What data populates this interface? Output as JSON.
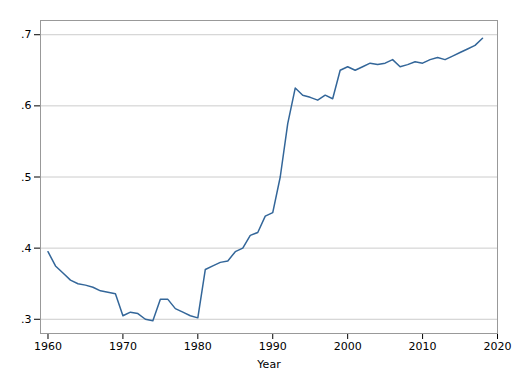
{
  "chart_data": {
    "type": "line",
    "x": [
      1960,
      1961,
      1962,
      1963,
      1964,
      1965,
      1966,
      1967,
      1968,
      1969,
      1970,
      1971,
      1972,
      1973,
      1974,
      1975,
      1976,
      1977,
      1978,
      1979,
      1980,
      1981,
      1982,
      1983,
      1984,
      1985,
      1986,
      1987,
      1988,
      1989,
      1990,
      1991,
      1992,
      1993,
      1994,
      1995,
      1996,
      1997,
      1998,
      1999,
      2000,
      2001,
      2002,
      2003,
      2004,
      2005,
      2006,
      2007,
      2008,
      2009,
      2010,
      2011,
      2012,
      2013,
      2014,
      2015,
      2016,
      2017,
      2018
    ],
    "values": [
      0.395,
      0.375,
      0.365,
      0.355,
      0.35,
      0.348,
      0.345,
      0.34,
      0.338,
      0.336,
      0.305,
      0.31,
      0.308,
      0.3,
      0.298,
      0.328,
      0.328,
      0.315,
      0.31,
      0.305,
      0.302,
      0.37,
      0.375,
      0.38,
      0.382,
      0.395,
      0.4,
      0.418,
      0.422,
      0.445,
      0.45,
      0.5,
      0.575,
      0.625,
      0.615,
      0.612,
      0.608,
      0.615,
      0.61,
      0.65,
      0.655,
      0.65,
      0.655,
      0.66,
      0.658,
      0.66,
      0.665,
      0.655,
      0.658,
      0.662,
      0.66,
      0.665,
      0.668,
      0.665,
      0.67,
      0.675,
      0.68,
      0.685,
      0.695
    ],
    "color": "#336699",
    "xlabel": "Year",
    "xlim": [
      1959,
      2020
    ],
    "xticks": [
      1960,
      1970,
      1980,
      1990,
      2000,
      2010,
      2020
    ],
    "ylim": [
      0.28,
      0.72
    ],
    "yticks": [
      {
        "value": 0.3,
        "label": ".3"
      },
      {
        "value": 0.4,
        "label": ".4"
      },
      {
        "value": 0.5,
        "label": ".5"
      },
      {
        "value": 0.6,
        "label": ".6"
      },
      {
        "value": 0.7,
        "label": ".7"
      }
    ],
    "grid": true
  }
}
